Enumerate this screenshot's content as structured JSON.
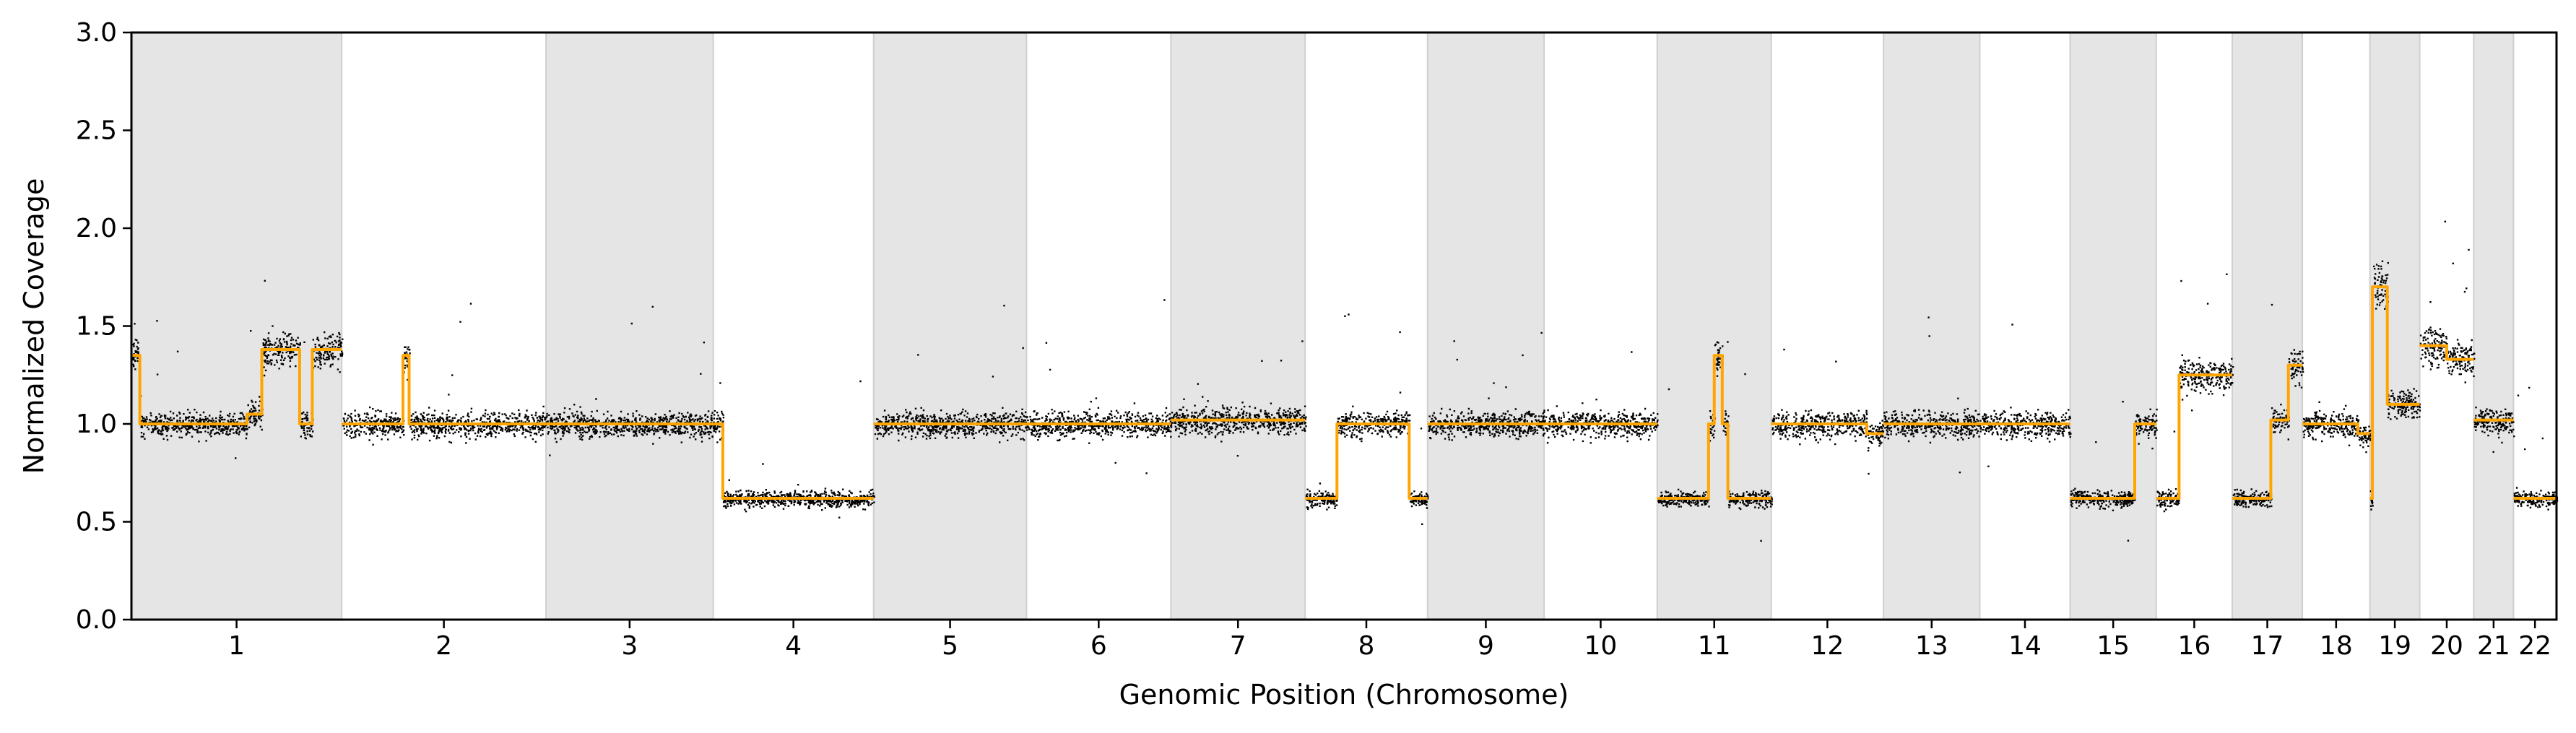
{
  "chart_data": {
    "type": "scatter",
    "xlabel": "Genomic Position (Chromosome)",
    "ylabel": "Normalized Coverage",
    "ylim": [
      0.0,
      3.0
    ],
    "yticks": [
      0.0,
      0.5,
      1.0,
      1.5,
      2.0,
      2.5,
      3.0
    ],
    "ytick_labels": [
      "0.0",
      "0.5",
      "1.0",
      "1.5",
      "2.0",
      "2.5",
      "3.0"
    ],
    "xtick_labels": [
      "1",
      "2",
      "3",
      "4",
      "5",
      "6",
      "7",
      "8",
      "9",
      "10",
      "11",
      "12",
      "13",
      "14",
      "15",
      "16",
      "17",
      "18",
      "19",
      "20",
      "21",
      "22"
    ],
    "chromosome_bands": "alternating grey/white shading",
    "grid": false,
    "colors": {
      "points": "#000000",
      "segments": "#FFA500",
      "band": "#E5E5E5"
    },
    "chromosomes": [
      {
        "name": "1",
        "len": 249,
        "segments": [
          [
            0,
            0.04,
            1.35
          ],
          [
            0.04,
            0.55,
            1.0
          ],
          [
            0.55,
            0.62,
            1.05
          ],
          [
            0.62,
            0.8,
            1.38
          ],
          [
            0.8,
            0.86,
            1.0
          ],
          [
            0.86,
            1.0,
            1.38
          ]
        ]
      },
      {
        "name": "2",
        "len": 242,
        "segments": [
          [
            0,
            0.3,
            1.0
          ],
          [
            0.3,
            0.33,
            1.35
          ],
          [
            0.33,
            1.0,
            1.0
          ]
        ]
      },
      {
        "name": "3",
        "len": 198,
        "segments": [
          [
            0,
            1.0,
            1.0
          ]
        ]
      },
      {
        "name": "4",
        "len": 190,
        "segments": [
          [
            0,
            0.06,
            1.0
          ],
          [
            0.06,
            1.0,
            0.62
          ]
        ]
      },
      {
        "name": "5",
        "len": 181,
        "segments": [
          [
            0,
            1.0,
            1.0
          ]
        ]
      },
      {
        "name": "6",
        "len": 171,
        "segments": [
          [
            0,
            1.0,
            1.0
          ]
        ]
      },
      {
        "name": "7",
        "len": 159,
        "segments": [
          [
            0,
            1.0,
            1.02
          ]
        ]
      },
      {
        "name": "8",
        "len": 145,
        "segments": [
          [
            0,
            0.26,
            0.62
          ],
          [
            0.26,
            0.85,
            1.0
          ],
          [
            0.85,
            1.0,
            0.62
          ]
        ]
      },
      {
        "name": "9",
        "len": 138,
        "segments": [
          [
            0,
            1.0,
            1.0
          ]
        ]
      },
      {
        "name": "10",
        "len": 134,
        "segments": [
          [
            0,
            1.0,
            1.0
          ]
        ]
      },
      {
        "name": "11",
        "len": 135,
        "segments": [
          [
            0,
            0.45,
            0.62
          ],
          [
            0.45,
            0.5,
            1.0
          ],
          [
            0.5,
            0.57,
            1.35
          ],
          [
            0.57,
            0.62,
            1.0
          ],
          [
            0.62,
            1.0,
            0.62
          ]
        ]
      },
      {
        "name": "12",
        "len": 133,
        "segments": [
          [
            0,
            0.85,
            1.0
          ],
          [
            0.85,
            1.0,
            0.95
          ]
        ]
      },
      {
        "name": "13",
        "len": 114,
        "segments": [
          [
            0,
            1.0,
            1.0
          ]
        ]
      },
      {
        "name": "14",
        "len": 107,
        "segments": [
          [
            0,
            1.0,
            1.0
          ]
        ]
      },
      {
        "name": "15",
        "len": 102,
        "segments": [
          [
            0,
            0.75,
            0.62
          ],
          [
            0.75,
            1.0,
            1.0
          ]
        ]
      },
      {
        "name": "16",
        "len": 90,
        "segments": [
          [
            0,
            0.3,
            0.62
          ],
          [
            0.3,
            0.65,
            1.25
          ],
          [
            0.65,
            1.0,
            1.25
          ]
        ]
      },
      {
        "name": "17",
        "len": 83,
        "segments": [
          [
            0,
            0.55,
            0.62
          ],
          [
            0.55,
            0.8,
            1.02
          ],
          [
            0.8,
            1.0,
            1.3
          ]
        ]
      },
      {
        "name": "18",
        "len": 80,
        "segments": [
          [
            0,
            0.82,
            1.0
          ],
          [
            0.82,
            1.0,
            0.95
          ]
        ]
      },
      {
        "name": "19",
        "len": 59,
        "segments": [
          [
            0,
            0.05,
            0.62
          ],
          [
            0.05,
            0.35,
            1.7
          ],
          [
            0.35,
            1.0,
            1.1
          ]
        ]
      },
      {
        "name": "20",
        "len": 64,
        "segments": [
          [
            0,
            0.5,
            1.4
          ],
          [
            0.5,
            1.0,
            1.33
          ]
        ]
      },
      {
        "name": "21",
        "len": 47,
        "segments": [
          [
            0,
            1.0,
            1.02
          ]
        ]
      },
      {
        "name": "22",
        "len": 51,
        "segments": [
          [
            0,
            1.0,
            0.62
          ]
        ]
      }
    ]
  }
}
